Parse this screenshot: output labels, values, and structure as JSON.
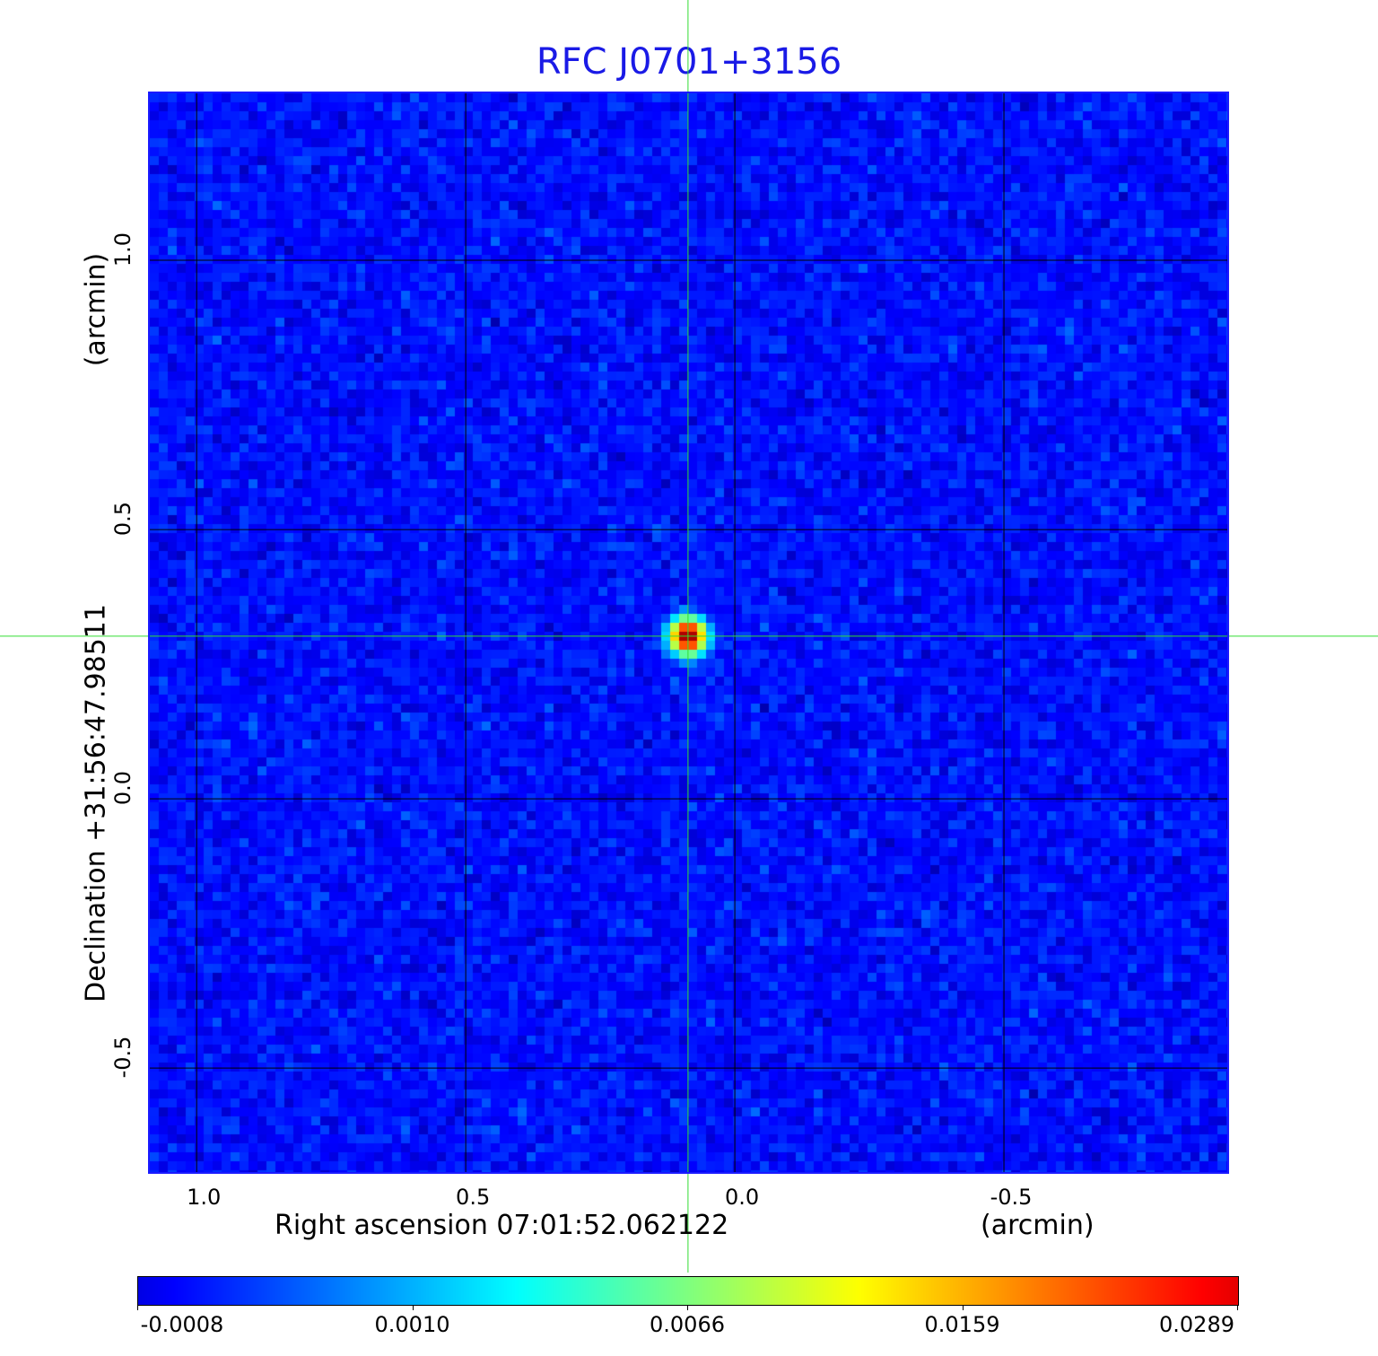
{
  "chart_data": {
    "type": "heatmap",
    "title": "RFC J0701+3156",
    "xlabel": "Right ascension  07:01:52.062122",
    "xunit": "(arcmin)",
    "ylabel": "Declination  +31:56:47.98511",
    "yunit": "(arcmin)",
    "xlim": [
      1.087,
      -0.915
    ],
    "ylim": [
      -0.693,
      1.31
    ],
    "xticks": [
      "1.0",
      "0.5",
      "0.0",
      "-0.5"
    ],
    "xtick_values": [
      1.0,
      0.5,
      0.0,
      -0.5
    ],
    "yticks": [
      "1.0",
      "0.5",
      "0.0",
      "-0.5"
    ],
    "ytick_values": [
      1.0,
      0.5,
      0.0,
      -0.5
    ],
    "grid": true,
    "colormap": "jet",
    "colorbar": {
      "ticks": [
        "-0.0008",
        "0.0010",
        "0.0066",
        "0.0159",
        "0.0289"
      ],
      "values": [
        -0.0008,
        0.001,
        0.0066,
        0.0159,
        0.0289
      ]
    },
    "source": {
      "ra": 0.087,
      "dec": 0.302,
      "peak": 0.0289
    },
    "crosshair": {
      "ra": 0.087,
      "dec": 0.302,
      "color": "#33dd33"
    },
    "background_range": [
      -0.0008,
      0.0012
    ],
    "frame_color": "#1a1aff",
    "title_color": "#1a1ae6"
  }
}
